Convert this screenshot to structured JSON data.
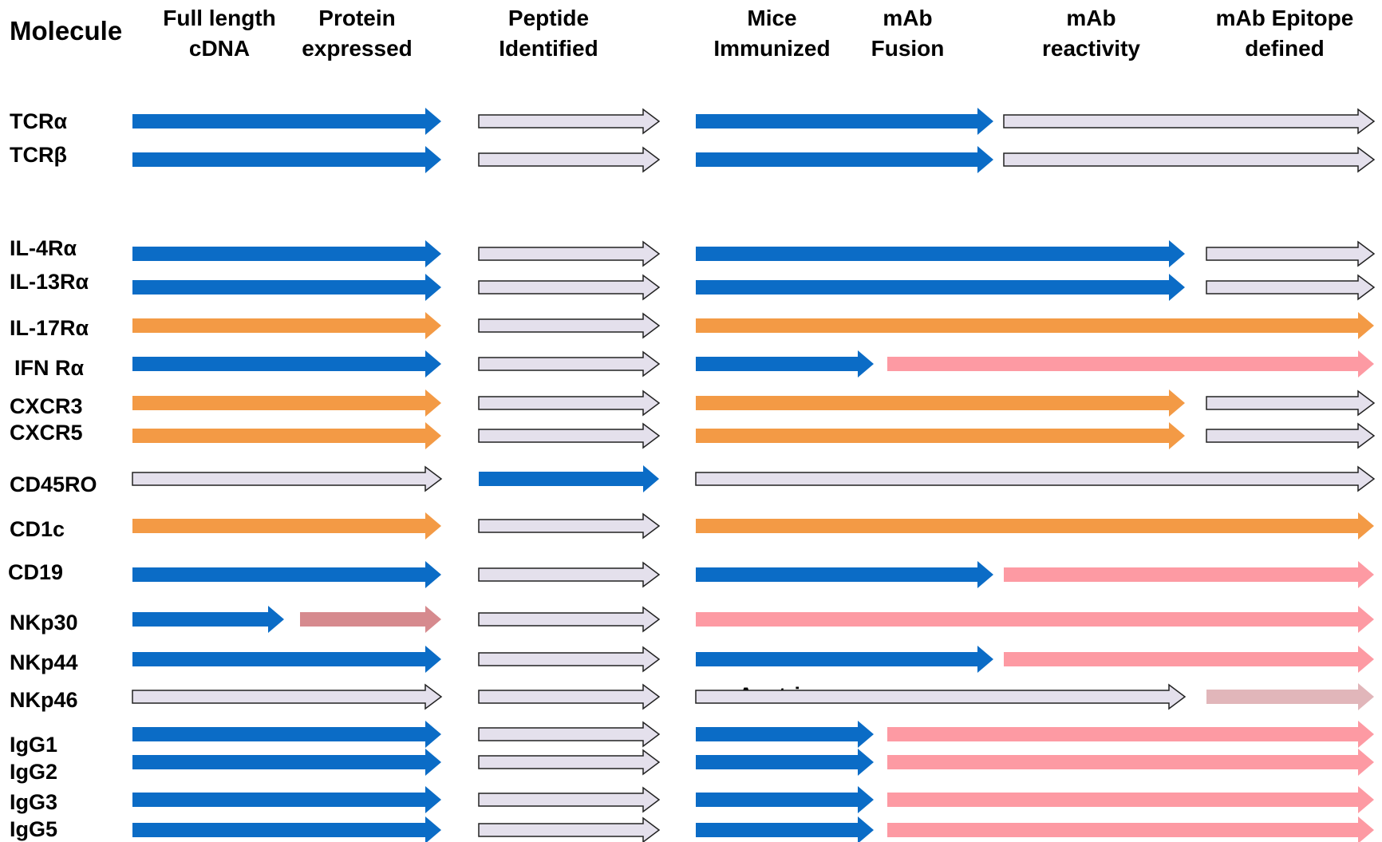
{
  "header": {
    "title": "Molecule",
    "columns": [
      {
        "id": "full_length_cdna",
        "lines": [
          "Full length",
          "cDNA"
        ]
      },
      {
        "id": "protein_expressed",
        "lines": [
          "Protein",
          "expressed"
        ]
      },
      {
        "id": "peptide_identified",
        "lines": [
          "Peptide",
          "Identified"
        ]
      },
      {
        "id": "mice_immunized",
        "lines": [
          "Mice",
          "Immunized"
        ]
      },
      {
        "id": "mab_fusion",
        "lines": [
          "mAb",
          "Fusion"
        ]
      },
      {
        "id": "mab_reactivity",
        "lines": [
          "mAb",
          "reactivity"
        ]
      },
      {
        "id": "mab_epitope_defined",
        "lines": [
          "mAb Epitope",
          "defined"
        ]
      }
    ]
  },
  "colors": {
    "blue": "#0b6cc6",
    "orange": "#f39a45",
    "grey": "#e4e0ec",
    "pink": "#fd9aa3",
    "mauve": "#d68a8e",
    "light_mauve": "#e1b6ba",
    "outline": "#222222"
  },
  "molecules": [
    {
      "label": "TCRα",
      "segments": [
        {
          "stage_from": "full_length_cdna",
          "stage_to": "protein_expressed",
          "status": "blue"
        },
        {
          "stage_from": "peptide_identified",
          "stage_to": "peptide_identified",
          "status": "grey"
        },
        {
          "stage_from": "mice_immunized",
          "stage_to": "mab_fusion",
          "status": "blue"
        },
        {
          "stage_from": "mab_reactivity",
          "stage_to": "mab_epitope_defined",
          "status": "grey"
        }
      ]
    },
    {
      "label": "TCRβ",
      "segments": [
        {
          "stage_from": "full_length_cdna",
          "stage_to": "protein_expressed",
          "status": "blue"
        },
        {
          "stage_from": "peptide_identified",
          "stage_to": "peptide_identified",
          "status": "grey"
        },
        {
          "stage_from": "mice_immunized",
          "stage_to": "mab_fusion",
          "status": "blue"
        },
        {
          "stage_from": "mab_reactivity",
          "stage_to": "mab_epitope_defined",
          "status": "grey"
        }
      ]
    },
    {
      "label": "IL-4Rα",
      "segments": [
        {
          "stage_from": "full_length_cdna",
          "stage_to": "protein_expressed",
          "status": "blue"
        },
        {
          "stage_from": "peptide_identified",
          "stage_to": "peptide_identified",
          "status": "grey"
        },
        {
          "stage_from": "mice_immunized",
          "stage_to": "mab_reactivity",
          "status": "blue"
        },
        {
          "stage_from": "mab_epitope_defined",
          "stage_to": "mab_epitope_defined",
          "status": "grey"
        }
      ]
    },
    {
      "label": "IL-13Rα",
      "segments": [
        {
          "stage_from": "full_length_cdna",
          "stage_to": "protein_expressed",
          "status": "blue"
        },
        {
          "stage_from": "peptide_identified",
          "stage_to": "peptide_identified",
          "status": "grey"
        },
        {
          "stage_from": "mice_immunized",
          "stage_to": "mab_reactivity",
          "status": "blue"
        },
        {
          "stage_from": "mab_epitope_defined",
          "stage_to": "mab_epitope_defined",
          "status": "grey"
        }
      ]
    },
    {
      "label": "IL-17Rα",
      "segments": [
        {
          "stage_from": "full_length_cdna",
          "stage_to": "protein_expressed",
          "status": "orange"
        },
        {
          "stage_from": "peptide_identified",
          "stage_to": "peptide_identified",
          "status": "grey"
        },
        {
          "stage_from": "mice_immunized",
          "stage_to": "mab_epitope_defined",
          "status": "orange"
        }
      ]
    },
    {
      "label": "IFN Rα",
      "segments": [
        {
          "stage_from": "full_length_cdna",
          "stage_to": "protein_expressed",
          "status": "blue"
        },
        {
          "stage_from": "peptide_identified",
          "stage_to": "peptide_identified",
          "status": "grey"
        },
        {
          "stage_from": "mice_immunized",
          "stage_to": "mice_immunized",
          "status": "blue"
        },
        {
          "stage_from": "mab_fusion",
          "stage_to": "mab_epitope_defined",
          "status": "pink"
        }
      ]
    },
    {
      "label": "CXCR3",
      "segments": [
        {
          "stage_from": "full_length_cdna",
          "stage_to": "protein_expressed",
          "status": "orange"
        },
        {
          "stage_from": "peptide_identified",
          "stage_to": "peptide_identified",
          "status": "grey"
        },
        {
          "stage_from": "mice_immunized",
          "stage_to": "mab_reactivity",
          "status": "orange"
        },
        {
          "stage_from": "mab_epitope_defined",
          "stage_to": "mab_epitope_defined",
          "status": "grey"
        }
      ]
    },
    {
      "label": "CXCR5",
      "segments": [
        {
          "stage_from": "full_length_cdna",
          "stage_to": "protein_expressed",
          "status": "orange"
        },
        {
          "stage_from": "peptide_identified",
          "stage_to": "peptide_identified",
          "status": "grey"
        },
        {
          "stage_from": "mice_immunized",
          "stage_to": "mab_reactivity",
          "status": "orange"
        },
        {
          "stage_from": "mab_epitope_defined",
          "stage_to": "mab_epitope_defined",
          "status": "grey"
        }
      ]
    },
    {
      "label": "CD45RO",
      "segments": [
        {
          "stage_from": "full_length_cdna",
          "stage_to": "protein_expressed",
          "status": "grey"
        },
        {
          "stage_from": "peptide_identified",
          "stage_to": "peptide_identified",
          "status": "blue"
        },
        {
          "stage_from": "mice_immunized",
          "stage_to": "mab_epitope_defined",
          "status": "grey"
        }
      ]
    },
    {
      "label": "CD1c",
      "segments": [
        {
          "stage_from": "full_length_cdna",
          "stage_to": "protein_expressed",
          "status": "orange"
        },
        {
          "stage_from": "peptide_identified",
          "stage_to": "peptide_identified",
          "status": "grey"
        },
        {
          "stage_from": "mice_immunized",
          "stage_to": "mab_epitope_defined",
          "status": "orange"
        }
      ]
    },
    {
      "label": "CD19",
      "segments": [
        {
          "stage_from": "full_length_cdna",
          "stage_to": "protein_expressed",
          "status": "blue"
        },
        {
          "stage_from": "peptide_identified",
          "stage_to": "peptide_identified",
          "status": "grey"
        },
        {
          "stage_from": "mice_immunized",
          "stage_to": "mab_fusion",
          "status": "blue"
        },
        {
          "stage_from": "mab_reactivity",
          "stage_to": "mab_epitope_defined",
          "status": "pink"
        }
      ]
    },
    {
      "label": "NKp30",
      "segments": [
        {
          "stage_from": "full_length_cdna",
          "stage_to": "full_length_cdna",
          "status": "blue"
        },
        {
          "stage_from": "protein_expressed",
          "stage_to": "protein_expressed",
          "status": "mauve"
        },
        {
          "stage_from": "peptide_identified",
          "stage_to": "peptide_identified",
          "status": "grey"
        },
        {
          "stage_from": "mice_immunized",
          "stage_to": "mab_epitope_defined",
          "status": "pink"
        }
      ]
    },
    {
      "label": "NKp44",
      "segments": [
        {
          "stage_from": "full_length_cdna",
          "stage_to": "protein_expressed",
          "status": "blue"
        },
        {
          "stage_from": "peptide_identified",
          "stage_to": "peptide_identified",
          "status": "grey"
        },
        {
          "stage_from": "mice_immunized",
          "stage_to": "mab_fusion",
          "status": "blue"
        },
        {
          "stage_from": "mab_reactivity",
          "stage_to": "mab_epitope_defined",
          "status": "pink"
        }
      ]
    },
    {
      "label": "NKp46",
      "note": "Austria",
      "segments": [
        {
          "stage_from": "full_length_cdna",
          "stage_to": "protein_expressed",
          "status": "grey"
        },
        {
          "stage_from": "peptide_identified",
          "stage_to": "peptide_identified",
          "status": "grey"
        },
        {
          "stage_from": "mice_immunized",
          "stage_to": "mab_reactivity",
          "status": "grey"
        },
        {
          "stage_from": "mab_epitope_defined",
          "stage_to": "mab_epitope_defined",
          "status": "light_mauve"
        }
      ]
    },
    {
      "label": "IgG1",
      "segments": [
        {
          "stage_from": "full_length_cdna",
          "stage_to": "protein_expressed",
          "status": "blue"
        },
        {
          "stage_from": "peptide_identified",
          "stage_to": "peptide_identified",
          "status": "grey"
        },
        {
          "stage_from": "mice_immunized",
          "stage_to": "mice_immunized",
          "status": "blue"
        },
        {
          "stage_from": "mab_fusion",
          "stage_to": "mab_epitope_defined",
          "status": "pink"
        }
      ]
    },
    {
      "label": "IgG2",
      "segments": [
        {
          "stage_from": "full_length_cdna",
          "stage_to": "protein_expressed",
          "status": "blue"
        },
        {
          "stage_from": "peptide_identified",
          "stage_to": "peptide_identified",
          "status": "grey"
        },
        {
          "stage_from": "mice_immunized",
          "stage_to": "mice_immunized",
          "status": "blue"
        },
        {
          "stage_from": "mab_fusion",
          "stage_to": "mab_epitope_defined",
          "status": "pink"
        }
      ]
    },
    {
      "label": "IgG3",
      "segments": [
        {
          "stage_from": "full_length_cdna",
          "stage_to": "protein_expressed",
          "status": "blue"
        },
        {
          "stage_from": "peptide_identified",
          "stage_to": "peptide_identified",
          "status": "grey"
        },
        {
          "stage_from": "mice_immunized",
          "stage_to": "mice_immunized",
          "status": "blue"
        },
        {
          "stage_from": "mab_fusion",
          "stage_to": "mab_epitope_defined",
          "status": "pink"
        }
      ]
    },
    {
      "label": "IgG5",
      "segments": [
        {
          "stage_from": "full_length_cdna",
          "stage_to": "protein_expressed",
          "status": "blue"
        },
        {
          "stage_from": "peptide_identified",
          "stage_to": "peptide_identified",
          "status": "grey"
        },
        {
          "stage_from": "mice_immunized",
          "stage_to": "mice_immunized",
          "status": "blue"
        },
        {
          "stage_from": "mab_fusion",
          "stage_to": "mab_epitope_defined",
          "status": "pink"
        }
      ]
    }
  ]
}
